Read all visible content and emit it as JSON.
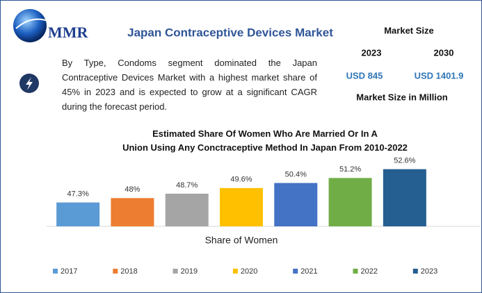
{
  "logo": "MMR",
  "header": {
    "title": "Japan Contraceptive Devices Market",
    "description": "By Type, Condoms segment dominated the Japan Contraceptive Devices Market with a highest market share of 45% in 2023 and is expected to grow at a significant CAGR during the forecast period."
  },
  "market_size": {
    "title": "Market Size",
    "years": [
      "2023",
      "2030"
    ],
    "values": [
      "USD 845",
      "USD 1401.9"
    ],
    "unit": "Market Size in Million"
  },
  "chart_data": {
    "type": "bar",
    "title": "Estimated Share Of Women Who Are Married Or In A Union Using Any Conctraceptive Method In Japan From 2010-2022",
    "x_label": "Share of Women",
    "categories": [
      null
    ],
    "ylim": [
      43.5,
      54
    ],
    "series": [
      {
        "name": "2017",
        "color": "#5b9bd5",
        "values": [
          47.3
        ],
        "value_labels": [
          "47.3%"
        ]
      },
      {
        "name": "2018",
        "color": "#ed7d31",
        "values": [
          48
        ],
        "value_labels": [
          "48%"
        ]
      },
      {
        "name": "2019",
        "color": "#a5a5a5",
        "values": [
          48.7
        ],
        "value_labels": [
          "48.7%"
        ]
      },
      {
        "name": "2020",
        "color": "#ffc000",
        "values": [
          49.6
        ],
        "value_labels": [
          "49.6%"
        ]
      },
      {
        "name": "2021",
        "color": "#4472c4",
        "values": [
          50.4
        ],
        "value_labels": [
          "50.4%"
        ]
      },
      {
        "name": "2022",
        "color": "#70ad47",
        "values": [
          51.2
        ],
        "value_labels": [
          "51.2%"
        ]
      },
      {
        "name": "2023",
        "color": "#255e91",
        "values": [
          52.6
        ],
        "value_labels": [
          "52.6%"
        ]
      }
    ],
    "legend": "bottom"
  }
}
